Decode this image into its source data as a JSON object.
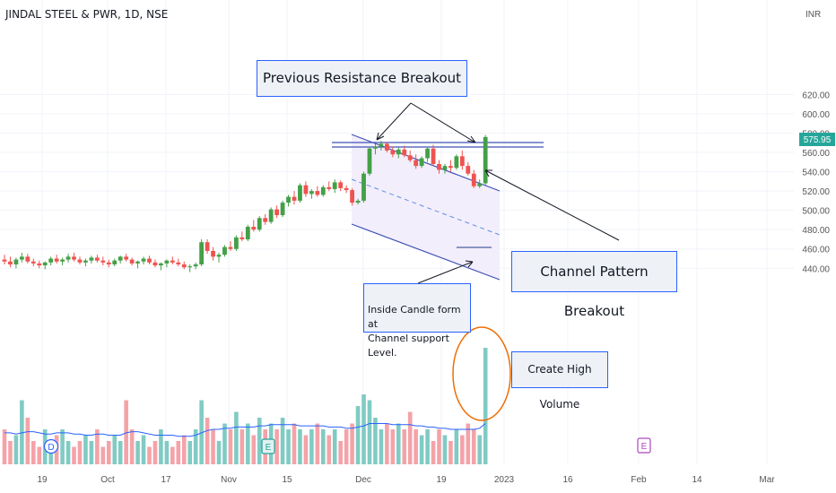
{
  "header": {
    "symbol": "JINDAL STEEL & PWR, 1D, NSE",
    "currency": "INR"
  },
  "price_tag": {
    "value": "575.95",
    "color": "#26a69a"
  },
  "annotations": {
    "resistance": "Previous Resistance Breakout",
    "channel": "Channel Pattern Breakout",
    "inside_candle": "Inside Candle form at\nChannel support Level.",
    "volume": "Create High Volume"
  },
  "event_markers": [
    "D",
    "E",
    "E"
  ],
  "colors": {
    "up": "#43a047",
    "down": "#ef5350",
    "vol_up": "#80cbc4",
    "vol_down": "#f4a3a8",
    "volume_ma": "#2962ff",
    "channel": "#3f51b5",
    "circle": "#ef6c00"
  },
  "chart_data": {
    "type": "candlestick",
    "title": "JINDAL STEEL & PWR, 1D, NSE",
    "ylabel": "INR",
    "y_ticks": [
      440,
      460,
      480,
      500,
      520,
      540,
      560,
      580,
      600,
      620
    ],
    "x_ticks": [
      "19",
      "Oct",
      "17",
      "Nov",
      "15",
      "Dec",
      "19",
      "2023",
      "16",
      "Feb",
      "14",
      "Mar"
    ],
    "grid": true,
    "last_price": 575.95,
    "resistance_level": 573,
    "candles": [
      [
        449,
        454,
        444,
        447
      ],
      [
        447,
        452,
        441,
        444
      ],
      [
        444,
        451,
        440,
        449
      ],
      [
        449,
        456,
        446,
        452
      ],
      [
        452,
        455,
        445,
        447
      ],
      [
        447,
        450,
        442,
        445
      ],
      [
        445,
        448,
        440,
        443
      ],
      [
        443,
        447,
        439,
        446
      ],
      [
        446,
        452,
        443,
        450
      ],
      [
        450,
        454,
        445,
        447
      ],
      [
        447,
        451,
        443,
        449
      ],
      [
        449,
        455,
        446,
        452
      ],
      [
        452,
        456,
        447,
        449
      ],
      [
        449,
        452,
        444,
        446
      ],
      [
        446,
        450,
        442,
        448
      ],
      [
        448,
        453,
        445,
        451
      ],
      [
        451,
        454,
        446,
        448
      ],
      [
        448,
        452,
        443,
        446
      ],
      [
        446,
        449,
        441,
        444
      ],
      [
        444,
        450,
        442,
        448
      ],
      [
        448,
        453,
        445,
        452
      ],
      [
        452,
        455,
        447,
        449
      ],
      [
        449,
        451,
        443,
        445
      ],
      [
        445,
        448,
        440,
        447
      ],
      [
        447,
        452,
        444,
        450
      ],
      [
        450,
        453,
        444,
        446
      ],
      [
        446,
        449,
        441,
        443
      ],
      [
        443,
        446,
        438,
        445
      ],
      [
        445,
        449,
        441,
        448
      ],
      [
        448,
        452,
        444,
        446
      ],
      [
        446,
        450,
        442,
        444
      ],
      [
        444,
        447,
        439,
        441
      ],
      [
        441,
        444,
        436,
        442
      ],
      [
        442,
        446,
        439,
        444
      ],
      [
        444,
        470,
        442,
        467
      ],
      [
        467,
        470,
        455,
        458
      ],
      [
        458,
        462,
        448,
        452
      ],
      [
        452,
        456,
        446,
        454
      ],
      [
        454,
        464,
        452,
        462
      ],
      [
        462,
        468,
        458,
        460
      ],
      [
        460,
        474,
        458,
        472
      ],
      [
        472,
        478,
        468,
        470
      ],
      [
        470,
        485,
        468,
        483
      ],
      [
        483,
        490,
        478,
        480
      ],
      [
        480,
        494,
        478,
        492
      ],
      [
        492,
        496,
        485,
        488
      ],
      [
        488,
        503,
        486,
        501
      ],
      [
        501,
        505,
        492,
        495
      ],
      [
        495,
        510,
        493,
        508
      ],
      [
        508,
        516,
        504,
        514
      ],
      [
        514,
        520,
        506,
        510
      ],
      [
        510,
        528,
        508,
        526
      ],
      [
        526,
        530,
        514,
        517
      ],
      [
        517,
        522,
        512,
        520
      ],
      [
        520,
        525,
        514,
        516
      ],
      [
        516,
        526,
        514,
        524
      ],
      [
        524,
        530,
        520,
        522
      ],
      [
        522,
        532,
        518,
        529
      ],
      [
        529,
        531,
        520,
        523
      ],
      [
        523,
        526,
        518,
        521
      ],
      [
        521,
        523,
        505,
        508
      ],
      [
        508,
        512,
        506,
        510
      ],
      [
        510,
        540,
        508,
        538
      ],
      [
        538,
        566,
        536,
        564
      ],
      [
        564,
        569,
        558,
        566
      ],
      [
        566,
        572,
        562,
        569
      ],
      [
        569,
        571,
        560,
        562
      ],
      [
        562,
        566,
        555,
        558
      ],
      [
        558,
        565,
        554,
        563
      ],
      [
        563,
        567,
        555,
        557
      ],
      [
        557,
        562,
        550,
        552
      ],
      [
        552,
        558,
        543,
        546
      ],
      [
        546,
        556,
        544,
        554
      ],
      [
        554,
        566,
        550,
        564
      ],
      [
        564,
        568,
        546,
        548
      ],
      [
        548,
        552,
        538,
        542
      ],
      [
        542,
        548,
        538,
        546
      ],
      [
        546,
        552,
        540,
        544
      ],
      [
        544,
        558,
        542,
        556
      ],
      [
        556,
        562,
        542,
        546
      ],
      [
        546,
        550,
        536,
        538
      ],
      [
        538,
        542,
        523,
        525
      ],
      [
        525,
        532,
        523,
        528
      ],
      [
        528,
        578,
        526,
        575.95
      ]
    ],
    "volume_relative": [
      0.3,
      0.2,
      0.25,
      0.55,
      0.4,
      0.2,
      0.15,
      0.3,
      0.2,
      0.25,
      0.3,
      0.2,
      0.15,
      0.2,
      0.25,
      0.2,
      0.3,
      0.15,
      0.2,
      0.25,
      0.2,
      0.55,
      0.3,
      0.2,
      0.25,
      0.15,
      0.2,
      0.3,
      0.2,
      0.15,
      0.2,
      0.25,
      0.2,
      0.3,
      0.55,
      0.4,
      0.3,
      0.2,
      0.35,
      0.3,
      0.45,
      0.3,
      0.35,
      0.25,
      0.4,
      0.3,
      0.35,
      0.3,
      0.4,
      0.3,
      0.35,
      0.3,
      0.25,
      0.3,
      0.35,
      0.3,
      0.25,
      0.3,
      0.2,
      0.3,
      0.35,
      0.5,
      0.6,
      0.55,
      0.4,
      0.3,
      0.35,
      0.3,
      0.35,
      0.3,
      0.45,
      0.3,
      0.25,
      0.3,
      0.2,
      0.3,
      0.25,
      0.2,
      0.3,
      0.25,
      0.35,
      0.3,
      0.25,
      1.0
    ],
    "volume_ma": [
      0.27,
      0.27,
      0.26,
      0.27,
      0.28,
      0.28,
      0.27,
      0.26,
      0.26,
      0.27,
      0.27,
      0.27,
      0.26,
      0.26,
      0.25,
      0.25,
      0.26,
      0.26,
      0.25,
      0.25,
      0.25,
      0.27,
      0.28,
      0.28,
      0.27,
      0.26,
      0.25,
      0.25,
      0.25,
      0.25,
      0.24,
      0.24,
      0.24,
      0.25,
      0.27,
      0.29,
      0.3,
      0.3,
      0.31,
      0.31,
      0.32,
      0.32,
      0.32,
      0.32,
      0.33,
      0.33,
      0.34,
      0.34,
      0.34,
      0.34,
      0.34,
      0.33,
      0.33,
      0.33,
      0.33,
      0.33,
      0.32,
      0.32,
      0.32,
      0.31,
      0.31,
      0.32,
      0.33,
      0.35,
      0.35,
      0.35,
      0.35,
      0.34,
      0.34,
      0.34,
      0.34,
      0.33,
      0.33,
      0.32,
      0.32,
      0.31,
      0.31,
      0.3,
      0.3,
      0.3,
      0.3,
      0.3,
      0.31,
      0.35
    ]
  }
}
